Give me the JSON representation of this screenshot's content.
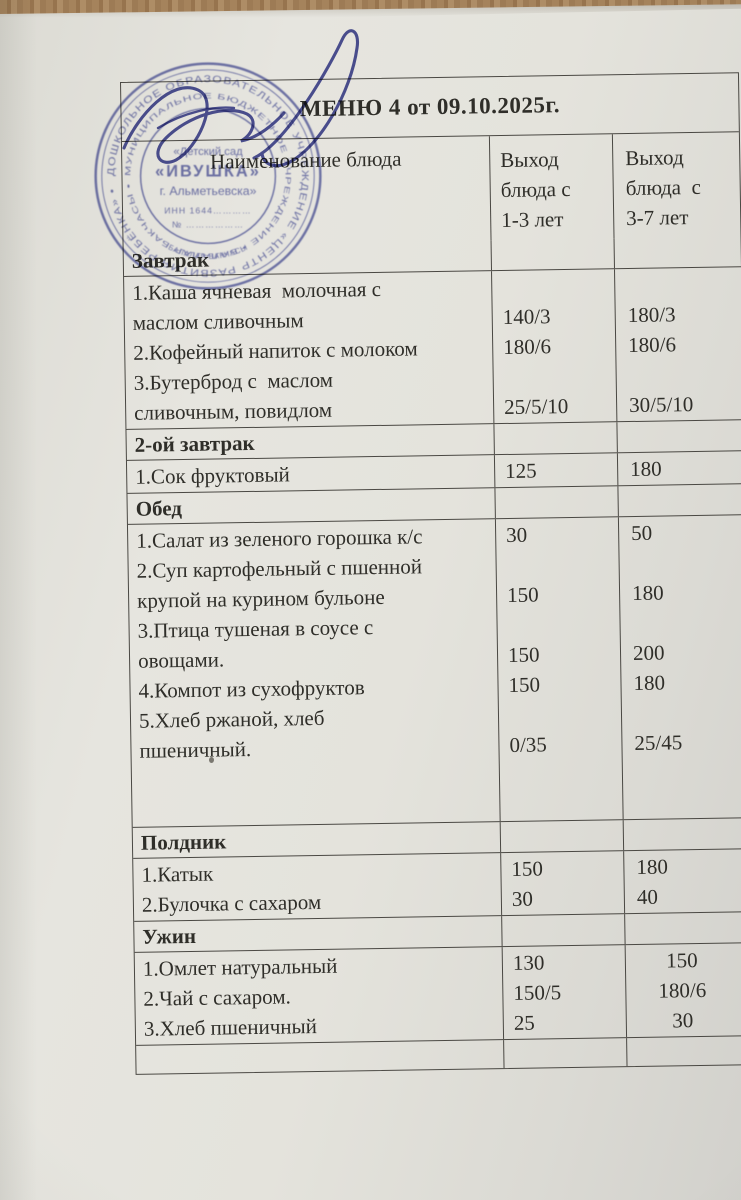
{
  "title": "МЕНЮ 4 от 09.10.2025г.",
  "colors": {
    "paper": "#e4e3dc",
    "paper_dark": "#d2d1cc",
    "wood": "#a3815a",
    "line": "#4a4843",
    "text": "#2f2e29",
    "stamp": "#5a60ac",
    "ink": "#3e4296"
  },
  "table": {
    "header": {
      "col1": "Наименование блюда",
      "col2_lines": [
        "Выход",
        "блюда с",
        "1-3 лет"
      ],
      "col3_lines": [
        "Выход",
        "блюда  с",
        "3-7 лет"
      ]
    },
    "sections": [
      {
        "header": "Завтрак",
        "lines": [
          {
            "n": "1.Каша ячневая  молочная с",
            "a": "",
            "b": ""
          },
          {
            "n": "маслом сливочным",
            "a": "140/3",
            "b": "180/3"
          },
          {
            "n": "2.Кофейный напиток с молоком",
            "a": "180/6",
            "b": "180/6"
          },
          {
            "n": "3.Бутерброд с  маслом",
            "a": "",
            "b": ""
          },
          {
            "n": "сливочным, повидлом",
            "a": "25/5/10",
            "b": "30/5/10"
          }
        ]
      },
      {
        "header": "2-ой завтрак",
        "lines": [
          {
            "n": "1.Сок фруктовый",
            "a": "125",
            "b": "180"
          }
        ]
      },
      {
        "header": "Обед",
        "lines": [
          {
            "n": "1.Салат из зеленого горошка к/с",
            "a": "30",
            "b": "50"
          },
          {
            "n": "2.Суп картофельный с пшенной",
            "a": "",
            "b": ""
          },
          {
            "n": "крупой на курином бульоне",
            "a": "150",
            "b": "180"
          },
          {
            "n": "3.Птица тушеная в соусе с",
            "a": "",
            "b": ""
          },
          {
            "n": "овощами.",
            "a": "150",
            "b": "200"
          },
          {
            "n": "4.Компот из сухофруктов",
            "a": "150",
            "b": "180"
          },
          {
            "n": "5.Хлеб ржаной, хлеб",
            "a": "",
            "b": ""
          },
          {
            "n": "пшеничный.",
            "a": "0/35",
            "b": "25/45"
          },
          {
            "n": "",
            "a": "",
            "b": ""
          },
          {
            "n": "",
            "a": "",
            "b": ""
          }
        ]
      },
      {
        "header": "Полдник",
        "lines": [
          {
            "n": "1.Катык",
            "a": "150",
            "b": "180"
          },
          {
            "n": "2.Булочка с сахаром",
            "a": "30",
            "b": "40"
          }
        ]
      },
      {
        "header": "Ужин",
        "center_col3": true,
        "lines": [
          {
            "n": "1.Омлет натуральный",
            "a": "130",
            "b": "150"
          },
          {
            "n": "2.Чай с сахаром.",
            "a": "150/5",
            "b": "180/6"
          },
          {
            "n": "3.Хлеб пшеничный",
            "a": "25",
            "b": "30"
          }
        ]
      },
      {
        "header": null,
        "short": true,
        "lines": [
          {
            "n": "",
            "a": "",
            "b": ""
          }
        ]
      }
    ]
  },
  "stamp": {
    "ring_outer": "ДОШКОЛЬНОЕ ОБРАЗОВАТЕЛЬНОЕ УЧРЕЖДЕНИЕ «ЦЕНТР РАЗВИТИЯ РЕБЁНКА» •",
    "ring_inner": "МУНИЦИПАЛЬНОЕ БЮДЖЕТНОЕ УЧРЕЖДЕНИЕ • БАЛАЛАР БАКЧАСЫ •",
    "ring_bottom": "БАЛАЛАР БАКЧАСЫ",
    "center_lines": [
      "«Детский сад",
      "«ИВУШКА»",
      "г. Альметьевска»",
      "ИНН 1644…………",
      "№ ………………"
    ]
  }
}
